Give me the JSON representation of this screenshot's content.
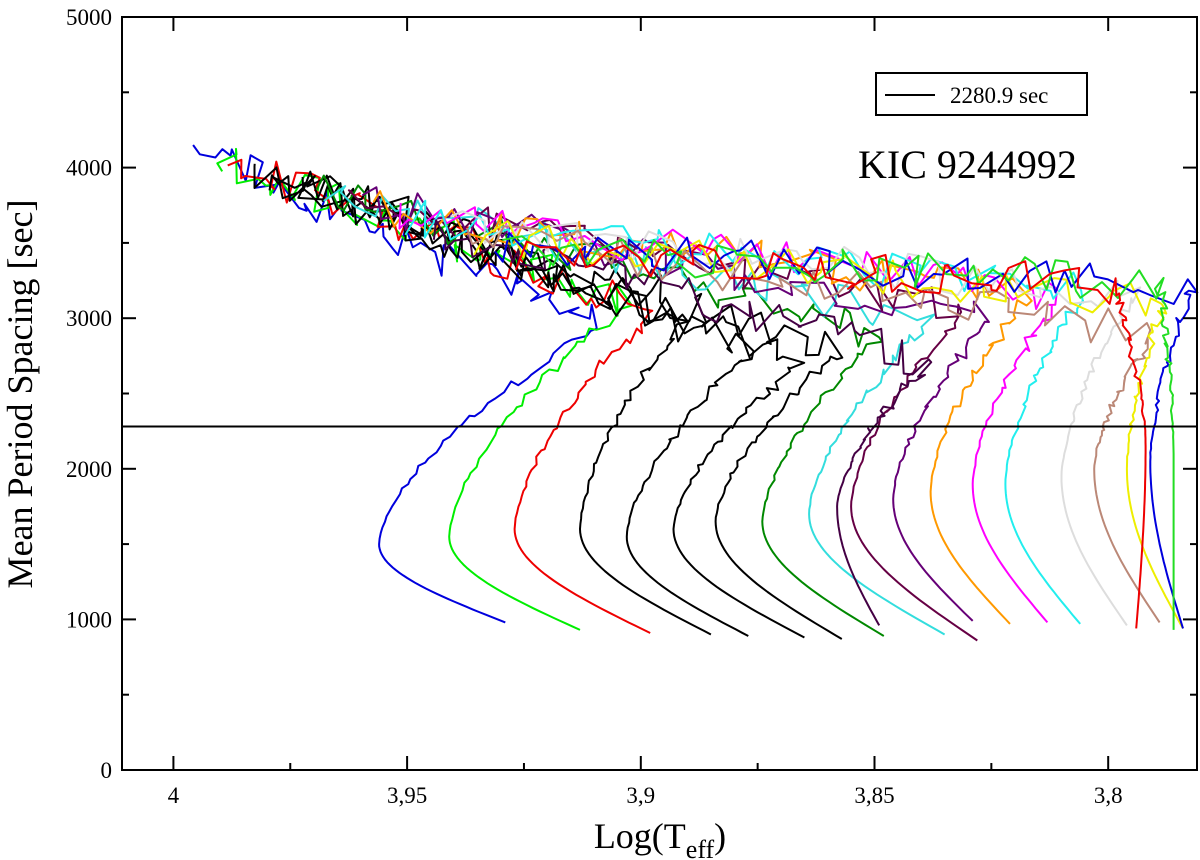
{
  "chart_data": {
    "type": "line",
    "title": "",
    "xlabel": "Log(T",
    "xlabel_sub": "eff",
    "xlabel_close": ")",
    "ylabel": "Mean Period Spacing [sec]",
    "xlim": [
      4.011,
      3.781
    ],
    "ylim": [
      0,
      5000
    ],
    "x_ticks": [
      4.0,
      3.95,
      3.9,
      3.85,
      3.8
    ],
    "x_tick_labels": [
      "4",
      "3,95",
      "3,9",
      "3,85",
      "3,8"
    ],
    "y_ticks": [
      0,
      1000,
      2000,
      3000,
      4000,
      5000
    ],
    "y_tick_labels": [
      "0",
      "1000",
      "2000",
      "3000",
      "4000",
      "5000"
    ],
    "annotation": "KIC 9244992",
    "reference_line": {
      "y": 2280.9,
      "label": "2280.9 sec",
      "color": "#000000"
    },
    "legend_position": "top-right",
    "grid": false,
    "tracks": [
      {
        "color": "#0000dd",
        "start": [
          3.929,
          980
        ],
        "turn": [
          3.956,
          1500
        ],
        "connect": [
          3.909,
          2950
        ]
      },
      {
        "color": "#00ee00",
        "start": [
          3.913,
          930
        ],
        "turn": [
          3.941,
          1550
        ],
        "connect": [
          3.903,
          3100
        ]
      },
      {
        "color": "#ee0000",
        "start": [
          3.898,
          910
        ],
        "turn": [
          3.927,
          1600
        ],
        "connect": [
          3.897,
          3050
        ]
      },
      {
        "color": "#000000",
        "start": [
          3.885,
          900
        ],
        "turn": [
          3.913,
          1600
        ],
        "connect": [
          3.89,
          3000
        ]
      },
      {
        "color": "#000000",
        "start": [
          3.877,
          890
        ],
        "turn": [
          3.903,
          1550
        ],
        "connect": [
          3.876,
          2800
        ]
      },
      {
        "color": "#000000",
        "start": [
          3.865,
          880
        ],
        "turn": [
          3.893,
          1600
        ],
        "connect": [
          3.866,
          2700
        ]
      },
      {
        "color": "#000000",
        "start": [
          3.857,
          870
        ],
        "turn": [
          3.884,
          1650
        ],
        "connect": [
          3.857,
          2780
        ]
      },
      {
        "color": "#008800",
        "start": [
          3.848,
          890
        ],
        "turn": [
          3.874,
          1650
        ],
        "connect": [
          3.848,
          2900
        ]
      },
      {
        "color": "#33dddd",
        "start": [
          3.835,
          900
        ],
        "turn": [
          3.864,
          1700
        ],
        "connect": [
          3.838,
          2980
        ]
      },
      {
        "color": "#660044",
        "start": [
          3.828,
          860
        ],
        "turn": [
          3.855,
          1750
        ],
        "connect": [
          3.831,
          3050
        ]
      },
      {
        "color": "#660077",
        "start": [
          3.829,
          990
        ],
        "turn": [
          3.846,
          1800
        ],
        "connect": [
          3.825,
          3000
        ]
      },
      {
        "color": "#ff9900",
        "start": [
          3.821,
          970
        ],
        "turn": [
          3.838,
          1850
        ],
        "connect": [
          3.817,
          3150
        ]
      },
      {
        "color": "#ff00ff",
        "start": [
          3.813,
          980
        ],
        "turn": [
          3.829,
          1900
        ],
        "connect": [
          3.81,
          3150
        ]
      },
      {
        "color": "#22eeee",
        "start": [
          3.806,
          970
        ],
        "turn": [
          3.822,
          1900
        ],
        "connect": [
          3.805,
          3170
        ]
      },
      {
        "color": "#440044",
        "start": [
          3.849,
          960
        ],
        "turn": [
          3.858,
          1750
        ],
        "connect": [
          3.838,
          2700
        ]
      },
      {
        "color": "#dddddd",
        "start": [
          3.796,
          960
        ],
        "turn": [
          3.81,
          1950
        ],
        "connect": [
          3.794,
          3170
        ]
      },
      {
        "color": "#bb8877",
        "start": [
          3.789,
          980
        ],
        "turn": [
          3.803,
          2000
        ],
        "connect": [
          3.79,
          2900
        ]
      },
      {
        "color": "#eeee00",
        "start": [
          3.784,
          940
        ],
        "turn": [
          3.796,
          2000
        ],
        "connect": [
          3.788,
          3100
        ]
      },
      {
        "color": "#0000dd",
        "start": [
          3.784,
          940
        ],
        "turn": [
          3.791,
          2050
        ],
        "connect": [
          3.782,
          3200
        ]
      },
      {
        "color": "#22dd22",
        "start": [
          3.786,
          930
        ],
        "turn": [
          3.786,
          2100
        ],
        "connect": [
          3.789,
          3230
        ]
      },
      {
        "color": "#ee0000",
        "start": [
          3.794,
          940
        ],
        "turn": [
          3.792,
          2150
        ],
        "connect": [
          3.799,
          3220
        ]
      }
    ]
  }
}
